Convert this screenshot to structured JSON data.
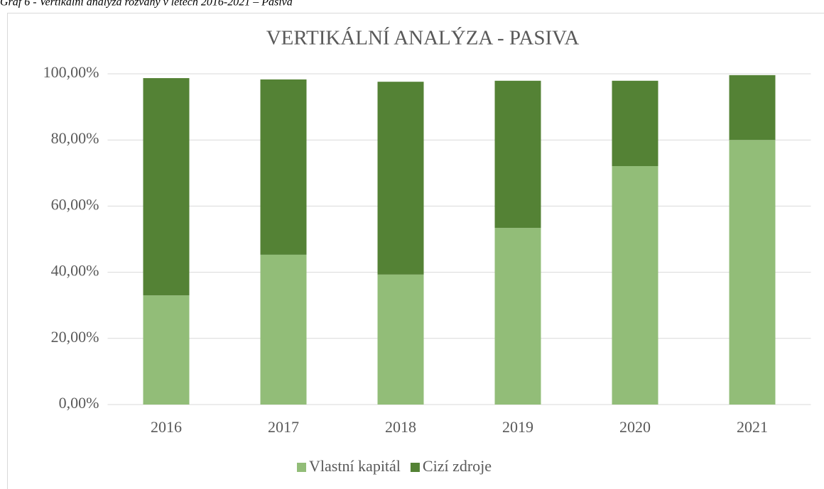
{
  "caption": "Graf 6 - Vertikální analýza rozvahy v letech 2016-2021 – Pasiva",
  "chart_data": {
    "type": "stacked_bar",
    "title": "VERTIKÁLNÍ ANALÝZA - PASIVA",
    "categories": [
      "2016",
      "2017",
      "2018",
      "2019",
      "2020",
      "2021"
    ],
    "series": [
      {
        "name": "Vlastní kapitál",
        "color": "#92bd78",
        "values": [
          33.0,
          45.3,
          39.3,
          53.4,
          72.1,
          80.0
        ]
      },
      {
        "name": "Cizí zdroje",
        "color": "#548235",
        "values": [
          65.7,
          53.0,
          58.3,
          44.5,
          25.8,
          19.6
        ]
      }
    ],
    "ylim": [
      0,
      100
    ],
    "yticks": [
      {
        "value": 0,
        "label": "0,00%"
      },
      {
        "value": 20,
        "label": "20,00%"
      },
      {
        "value": 40,
        "label": "40,00%"
      },
      {
        "value": 60,
        "label": "60,00%"
      },
      {
        "value": 80,
        "label": "80,00%"
      },
      {
        "value": 100,
        "label": "100,00%"
      }
    ],
    "grid": true,
    "legend": "bottom"
  }
}
